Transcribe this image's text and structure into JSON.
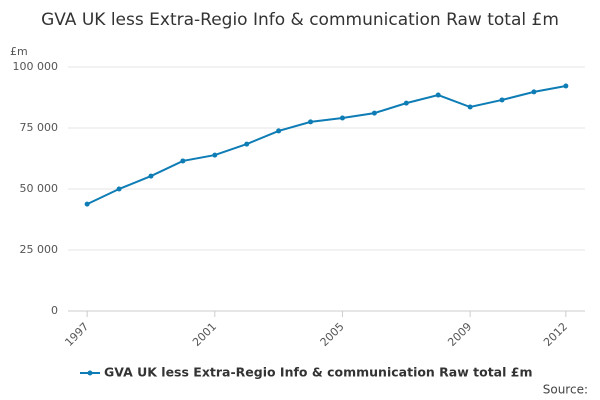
{
  "chart_data": {
    "type": "line",
    "title": "GVA UK less Extra-Regio Info & communication Raw total £m",
    "y_label": "£m",
    "source": "Source:",
    "x": [
      1997,
      1998,
      1999,
      2000,
      2001,
      2002,
      2003,
      2004,
      2005,
      2006,
      2007,
      2008,
      2009,
      2010,
      2011,
      2012
    ],
    "series": [
      {
        "name": "GVA UK less Extra-Regio Info & communication Raw total £m",
        "color": "#0e7cb5",
        "values": [
          43800,
          50000,
          55300,
          61500,
          63900,
          68400,
          73800,
          77500,
          79100,
          81100,
          85200,
          88500,
          83600,
          86500,
          89800,
          92200
        ]
      }
    ],
    "xlim": [
      1996.4,
      2012.6
    ],
    "xticks": [
      1997,
      2001,
      2005,
      2009,
      2012
    ],
    "ylim": [
      0,
      100000
    ],
    "yticks": [
      0,
      {
        "value": 25000,
        "label": "25 000"
      },
      {
        "value": 50000,
        "label": "50 000"
      },
      {
        "value": 75000,
        "label": "75 000"
      },
      {
        "value": 100000,
        "label": "100 000"
      }
    ],
    "grid": true,
    "legend": "bottom"
  }
}
